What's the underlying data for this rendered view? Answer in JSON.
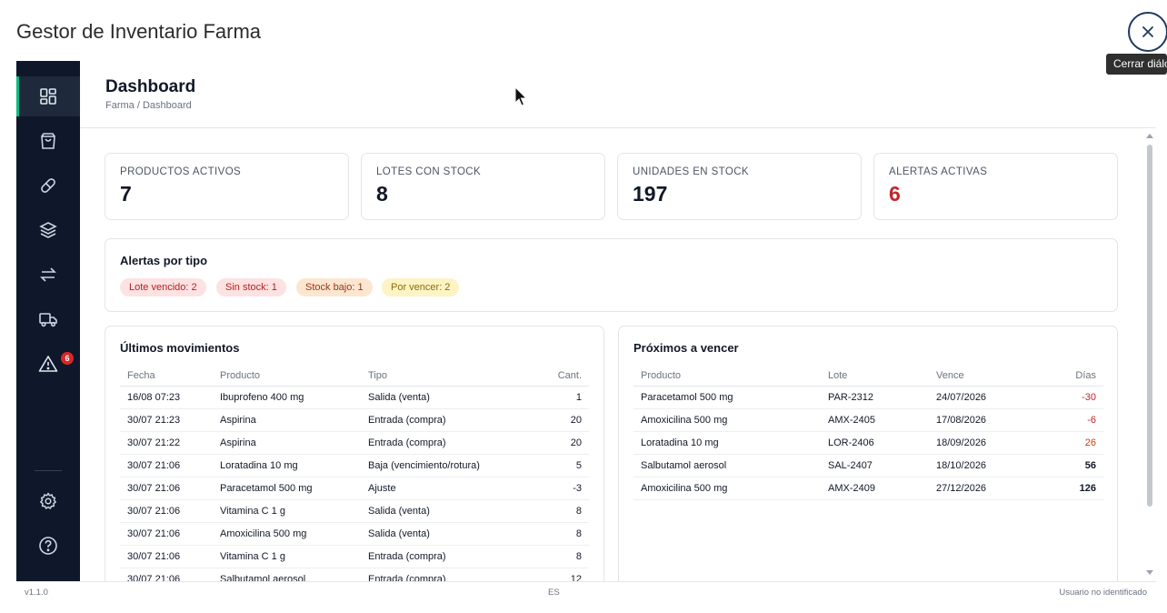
{
  "dialog": {
    "title": "Gestor de Inventario Farma",
    "close_tooltip": "Cerrar diálogo"
  },
  "sidebar": {
    "items": [
      {
        "icon": "dashboard-icon",
        "active": true
      },
      {
        "icon": "shopping-bag-icon"
      },
      {
        "icon": "pill-icon"
      },
      {
        "icon": "layers-icon"
      },
      {
        "icon": "swap-icon"
      },
      {
        "icon": "truck-icon"
      },
      {
        "icon": "alert-triangle-icon",
        "badge": "6"
      },
      {
        "icon": "settings-icon"
      },
      {
        "icon": "help-icon"
      }
    ],
    "alerts_badge": "6",
    "accent": "#10b981",
    "background": "#0f172a"
  },
  "header": {
    "title": "Dashboard",
    "breadcrumb": "Farma / Dashboard"
  },
  "stats": [
    {
      "label": "PRODUCTOS ACTIVOS",
      "value": "7"
    },
    {
      "label": "LOTES CON STOCK",
      "value": "8"
    },
    {
      "label": "UNIDADES EN STOCK",
      "value": "197"
    },
    {
      "label": "ALERTAS ACTIVAS",
      "value": "6",
      "color": "#c0262d"
    }
  ],
  "alerts_by_type": {
    "title": "Alertas por tipo",
    "pills": [
      {
        "label": "Lote vencido: 2",
        "color": "red"
      },
      {
        "label": "Sin stock: 1",
        "color": "red"
      },
      {
        "label": "Stock bajo: 1",
        "color": "orange"
      },
      {
        "label": "Por vencer: 2",
        "color": "yellow"
      }
    ]
  },
  "movements": {
    "title": "Últimos movimientos",
    "columns": [
      "Fecha",
      "Producto",
      "Tipo",
      "Cant."
    ],
    "rows": [
      [
        "16/08 07:23",
        "Ibuprofeno 400 mg",
        "Salida (venta)",
        "1"
      ],
      [
        "30/07 21:23",
        "Aspirina",
        "Entrada (compra)",
        "20"
      ],
      [
        "30/07 21:22",
        "Aspirina",
        "Entrada (compra)",
        "20"
      ],
      [
        "30/07 21:06",
        "Loratadina 10 mg",
        "Baja (vencimiento/rotura)",
        "5"
      ],
      [
        "30/07 21:06",
        "Paracetamol 500 mg",
        "Ajuste",
        "-3"
      ],
      [
        "30/07 21:06",
        "Vitamina C 1 g",
        "Salida (venta)",
        "8"
      ],
      [
        "30/07 21:06",
        "Amoxicilina 500 mg",
        "Salida (venta)",
        "8"
      ],
      [
        "30/07 21:06",
        "Vitamina C 1 g",
        "Entrada (compra)",
        "8"
      ],
      [
        "30/07 21:06",
        "Salbutamol aerosol",
        "Entrada (compra)",
        "12"
      ]
    ]
  },
  "expiring": {
    "title": "Próximos a vencer",
    "columns": [
      "Producto",
      "Lote",
      "Vence",
      "Días"
    ],
    "rows": [
      [
        "Paracetamol 500 mg",
        "PAR-2312",
        "24/07/2026",
        "-30"
      ],
      [
        "Amoxicilina 500 mg",
        "AMX-2405",
        "17/08/2026",
        "-6"
      ],
      [
        "Loratadina 10 mg",
        "LOR-2406",
        "18/09/2026",
        "26"
      ],
      [
        "Salbutamol aerosol",
        "SAL-2407",
        "18/10/2026",
        "56"
      ],
      [
        "Amoxicilina 500 mg",
        "AMX-2409",
        "27/12/2026",
        "126"
      ]
    ]
  },
  "footer": {
    "version": "v1.1.0",
    "language": "ES",
    "user": "Usuario no identificado"
  }
}
